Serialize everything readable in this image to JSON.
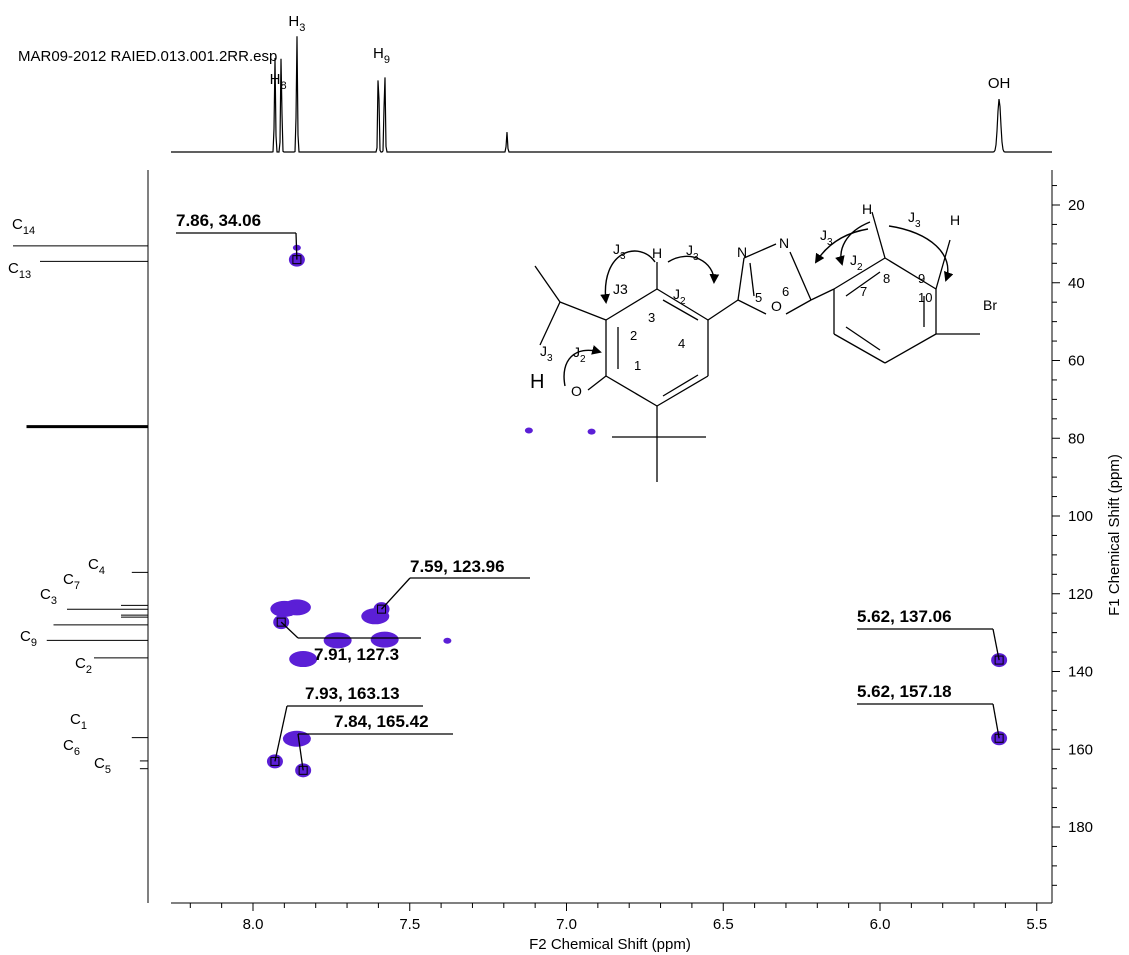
{
  "chart_data": {
    "type": "scatter",
    "subtype": "2D NMR HMBC correlation map",
    "title": "MAR09-2012 RAIED.013.001.2RR.esp",
    "xlabel": "F2 Chemical Shift (ppm)",
    "ylabel": "F1 Chemical Shift (ppm)",
    "xlim": [
      8.3,
      5.47
    ],
    "ylim": [
      10,
      200
    ],
    "x_reversed": true,
    "y_reversed": true,
    "x_ticks": [
      "8.0",
      "7.5",
      "7.0",
      "6.5",
      "6.0",
      "5.5"
    ],
    "y_ticks": [
      "20",
      "40",
      "60",
      "80",
      "100",
      "120",
      "140",
      "160",
      "180"
    ],
    "grid": false,
    "marker_color": "#5b1fd6",
    "cross_peaks": [
      {
        "label": "7.86, 34.06",
        "x": 7.86,
        "y": 34.06
      },
      {
        "label": "7.59, 123.96",
        "x": 7.59,
        "y": 123.96
      },
      {
        "label": "7.91, 127.3",
        "x": 7.91,
        "y": 127.3
      },
      {
        "label": "5.62, 137.06",
        "x": 5.62,
        "y": 137.06
      },
      {
        "label": "7.93, 163.13",
        "x": 7.93,
        "y": 163.13
      },
      {
        "label": "7.84, 165.42",
        "x": 7.84,
        "y": 165.42
      },
      {
        "label": "5.62, 157.18",
        "x": 5.62,
        "y": 157.18
      }
    ],
    "unlabeled_peaks": [
      {
        "x": 7.86,
        "y": 123.5
      },
      {
        "x": 7.9,
        "y": 123.9
      },
      {
        "x": 7.58,
        "y": 131.8
      },
      {
        "x": 7.86,
        "y": 157.3
      },
      {
        "x": 7.84,
        "y": 136.8
      },
      {
        "x": 7.38,
        "y": 132.1
      },
      {
        "x": 7.73,
        "y": 132.0
      },
      {
        "x": 7.61,
        "y": 125.8
      },
      {
        "x": 7.86,
        "y": 31.0
      },
      {
        "x": 6.92,
        "y": 78.3
      },
      {
        "x": 7.12,
        "y": 78.0
      }
    ],
    "proton_spectrum": {
      "peaks": [
        {
          "ppm": 7.93,
          "height": 0.8
        },
        {
          "ppm": 7.91,
          "height": 0.85
        },
        {
          "ppm": 7.86,
          "height": 1.0
        },
        {
          "ppm": 7.6,
          "height": 0.78
        },
        {
          "ppm": 7.58,
          "height": 0.75
        },
        {
          "ppm": 7.19,
          "height": 0.17
        },
        {
          "ppm": 5.62,
          "height": 0.45
        }
      ],
      "labels": [
        {
          "base": "H",
          "sub": "8",
          "ppm": 7.92
        },
        {
          "base": "H",
          "sub": "3",
          "ppm": 7.86
        },
        {
          "base": "H",
          "sub": "9",
          "ppm": 7.59
        },
        {
          "base": "OH",
          "sub": "",
          "ppm": 5.62
        }
      ]
    },
    "carbon_spectrum": {
      "lines": [
        {
          "ppm": 30.5,
          "len": 1.0
        },
        {
          "ppm": 34.5,
          "len": 0.8
        },
        {
          "ppm": 77.0,
          "len": 0.9
        },
        {
          "ppm": 114.5,
          "len": 0.12
        },
        {
          "ppm": 123.0,
          "len": 0.2
        },
        {
          "ppm": 124.0,
          "len": 0.6
        },
        {
          "ppm": 125.5,
          "len": 0.2
        },
        {
          "ppm": 126.0,
          "len": 0.2
        },
        {
          "ppm": 128.0,
          "len": 0.7
        },
        {
          "ppm": 132.0,
          "len": 0.75
        },
        {
          "ppm": 136.5,
          "len": 0.4
        },
        {
          "ppm": 157.0,
          "len": 0.12
        },
        {
          "ppm": 163.0,
          "len": 0.06
        },
        {
          "ppm": 165.0,
          "len": 0.06
        }
      ],
      "labels": [
        {
          "base": "C",
          "sub": "14",
          "ppm": 29
        },
        {
          "base": "C",
          "sub": "13",
          "ppm": 36
        },
        {
          "base": "C",
          "sub": "4",
          "ppm": 115
        },
        {
          "base": "C",
          "sub": "7",
          "ppm": 118
        },
        {
          "base": "C",
          "sub": "3",
          "ppm": 122
        },
        {
          "base": "C",
          "sub": "9",
          "ppm": 132
        },
        {
          "base": "C",
          "sub": "2",
          "ppm": 140
        },
        {
          "base": "C",
          "sub": "1",
          "ppm": 155
        },
        {
          "base": "C",
          "sub": "6",
          "ppm": 162
        },
        {
          "base": "C",
          "sub": "5",
          "ppm": 165.5
        }
      ]
    },
    "structure_labels": {
      "H": "H",
      "O": "O",
      "N": "N",
      "Br": "Br",
      "positions": [
        "1",
        "2",
        "3",
        "4",
        "5",
        "6",
        "7",
        "8",
        "9",
        "10"
      ],
      "couplings": [
        {
          "base": "J",
          "sub": "3"
        },
        {
          "base": "J",
          "sub": "2"
        },
        {
          "base": "J3",
          "sub": ""
        }
      ]
    }
  }
}
